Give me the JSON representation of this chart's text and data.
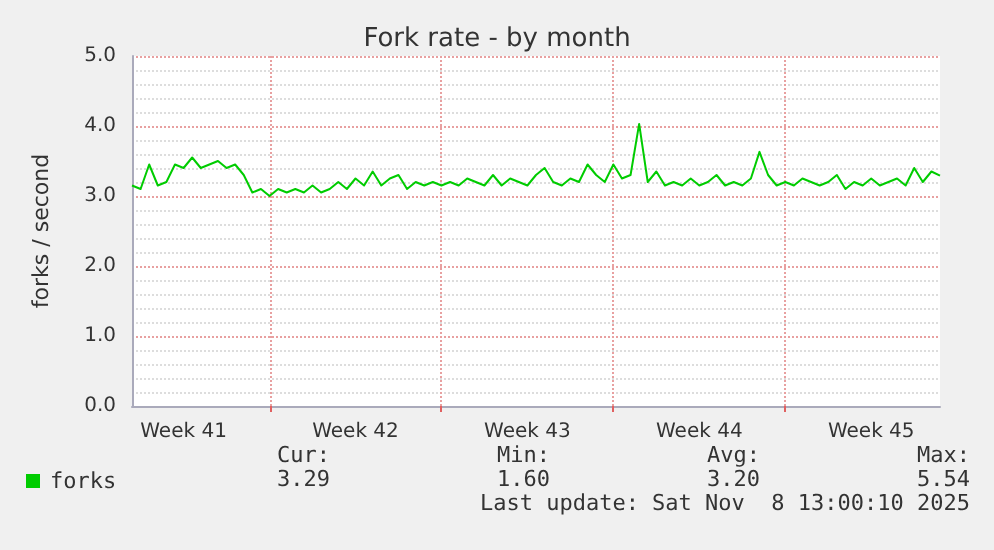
{
  "chart_data": {
    "type": "line",
    "title": "Fork rate - by month",
    "ylabel": "forks / second",
    "categories": [
      null,
      null,
      null,
      null,
      null,
      null,
      "Week 41",
      null,
      null,
      null,
      null,
      null,
      null,
      null,
      null,
      null,
      null,
      null,
      null,
      null,
      null,
      null,
      null,
      null,
      null,
      null,
      "Week 42",
      null,
      null,
      null,
      null,
      null,
      null,
      null,
      null,
      null,
      null,
      null,
      null,
      null,
      null,
      null,
      null,
      null,
      null,
      null,
      "Week 43",
      null,
      null,
      null,
      null,
      null,
      null,
      null,
      null,
      null,
      null,
      null,
      null,
      null,
      null,
      null,
      null,
      null,
      null,
      null,
      "Week 44",
      null,
      null,
      null,
      null,
      null,
      null,
      null,
      null,
      null,
      null,
      null,
      null,
      null,
      null,
      null,
      null,
      null,
      null,
      null,
      "Week 45",
      null,
      null,
      null,
      null,
      null,
      null,
      null,
      null
    ],
    "series": [
      {
        "name": "forks",
        "color": "#00cc00",
        "values": [
          3.15,
          3.1,
          3.45,
          3.15,
          3.2,
          3.45,
          3.4,
          3.55,
          3.4,
          3.45,
          3.5,
          3.4,
          3.45,
          3.3,
          3.05,
          3.1,
          3.0,
          3.1,
          3.05,
          3.1,
          3.05,
          3.15,
          3.05,
          3.1,
          3.2,
          3.1,
          3.25,
          3.15,
          3.35,
          3.15,
          3.25,
          3.3,
          3.1,
          3.2,
          3.15,
          3.2,
          3.15,
          3.2,
          3.15,
          3.25,
          3.2,
          3.15,
          3.3,
          3.15,
          3.25,
          3.2,
          3.15,
          3.3,
          3.4,
          3.2,
          3.15,
          3.25,
          3.2,
          3.45,
          3.3,
          3.2,
          3.45,
          3.25,
          3.3,
          4.03,
          3.2,
          3.35,
          3.15,
          3.2,
          3.15,
          3.25,
          3.15,
          3.2,
          3.3,
          3.15,
          3.2,
          3.15,
          3.25,
          3.63,
          3.3,
          3.15,
          3.2,
          3.15,
          3.25,
          3.2,
          3.15,
          3.2,
          3.3,
          3.1,
          3.2,
          3.15,
          3.25,
          3.15,
          3.2,
          3.25,
          3.15,
          3.4,
          3.2,
          3.35,
          3.29
        ]
      }
    ],
    "ylim": [
      0,
      5
    ],
    "yticks": [
      {
        "value": 0,
        "label": "0.0"
      },
      {
        "value": 1,
        "label": "1.0"
      },
      {
        "value": 2,
        "label": "2.0"
      },
      {
        "value": 3,
        "label": "3.0"
      },
      {
        "value": 4,
        "label": "4.0"
      },
      {
        "value": 5,
        "label": "5.0"
      }
    ],
    "grid": true,
    "legend": "bottom left",
    "marker": "none",
    "line_style": "solid",
    "annotations": [
      "Cur:",
      "3.29",
      "Min:",
      "1.60",
      "Avg:",
      "3.20",
      "Max:",
      "5.54",
      "Last update: Sat Nov  8 13:00:10 2025"
    ]
  }
}
